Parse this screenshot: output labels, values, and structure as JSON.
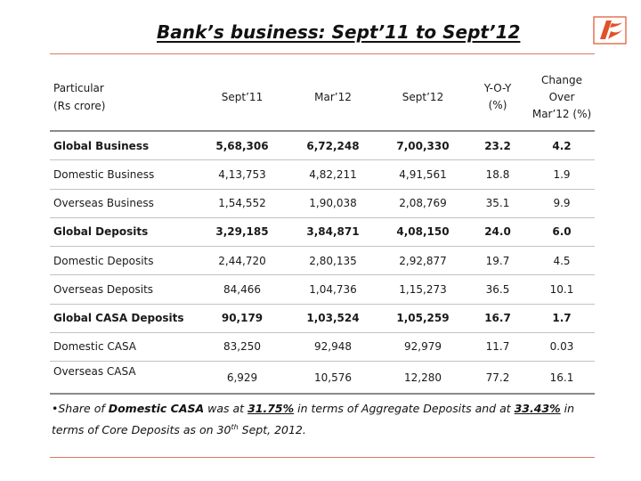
{
  "title": "Bank’s business: Sept’11 to Sept’12",
  "columns": {
    "particular": [
      "Particular",
      "(Rs crore)"
    ],
    "sept11": "Sept’11",
    "mar12": "Mar’12",
    "sept12": "Sept’12",
    "yoy": [
      "Y-O-Y",
      "(%)"
    ],
    "change": [
      "Change",
      "Over",
      "Mar’12 (%)"
    ]
  },
  "rows": [
    {
      "particular": "Global Business",
      "sept11": "5,68,306",
      "mar12": "6,72,248",
      "sept12": "7,00,330",
      "yoy": "23.2",
      "change": "4.2"
    },
    {
      "particular": "Domestic Business",
      "sept11": "4,13,753",
      "mar12": "4,82,211",
      "sept12": "4,91,561",
      "yoy": "18.8",
      "change": "1.9"
    },
    {
      "particular": "Overseas Business",
      "sept11": "1,54,552",
      "mar12": "1,90,038",
      "sept12": "2,08,769",
      "yoy": "35.1",
      "change": "9.9"
    },
    {
      "particular": "Global Deposits",
      "sept11": "3,29,185",
      "mar12": "3,84,871",
      "sept12": "4,08,150",
      "yoy": "24.0",
      "change": "6.0"
    },
    {
      "particular": "Domestic Deposits",
      "sept11": "2,44,720",
      "mar12": "2,80,135",
      "sept12": "2,92,877",
      "yoy": "19.7",
      "change": "4.5"
    },
    {
      "particular": "Overseas Deposits",
      "sept11": "84,466",
      "mar12": "1,04,736",
      "sept12": "1,15,273",
      "yoy": "36.5",
      "change": "10.1"
    },
    {
      "particular": "Global CASA Deposits",
      "sept11": "90,179",
      "mar12": "1,03,524",
      "sept12": "1,05,259",
      "yoy": "16.7",
      "change": "1.7"
    },
    {
      "particular": "Domestic CASA",
      "sept11": "83,250",
      "mar12": "92,948",
      "sept12": "92,979",
      "yoy": "11.7",
      "change": "0.03"
    },
    {
      "particular": "Overseas CASA",
      "sept11": "6,929",
      "mar12": "10,576",
      "sept12": "12,280",
      "yoy": "77.2",
      "change": "16.1"
    }
  ],
  "bold_rows": [
    "Global Business",
    "Global Deposits",
    "Global CASA Deposits"
  ],
  "footnote": {
    "bullet": "•",
    "t1": "Share of ",
    "b1": "Domestic CASA",
    "t2": " was at ",
    "u1": "31.75%",
    "t3": " in terms of Aggregate Deposits and at ",
    "u2": "33.43%",
    "t4": " in terms of Core Deposits as on 30",
    "sup": "th",
    "t5": " Sept, 2012."
  },
  "colors": {
    "logo": "#e0522a",
    "rule": "#d87a63"
  },
  "logo_icon": "bank-of-baroda-logo"
}
